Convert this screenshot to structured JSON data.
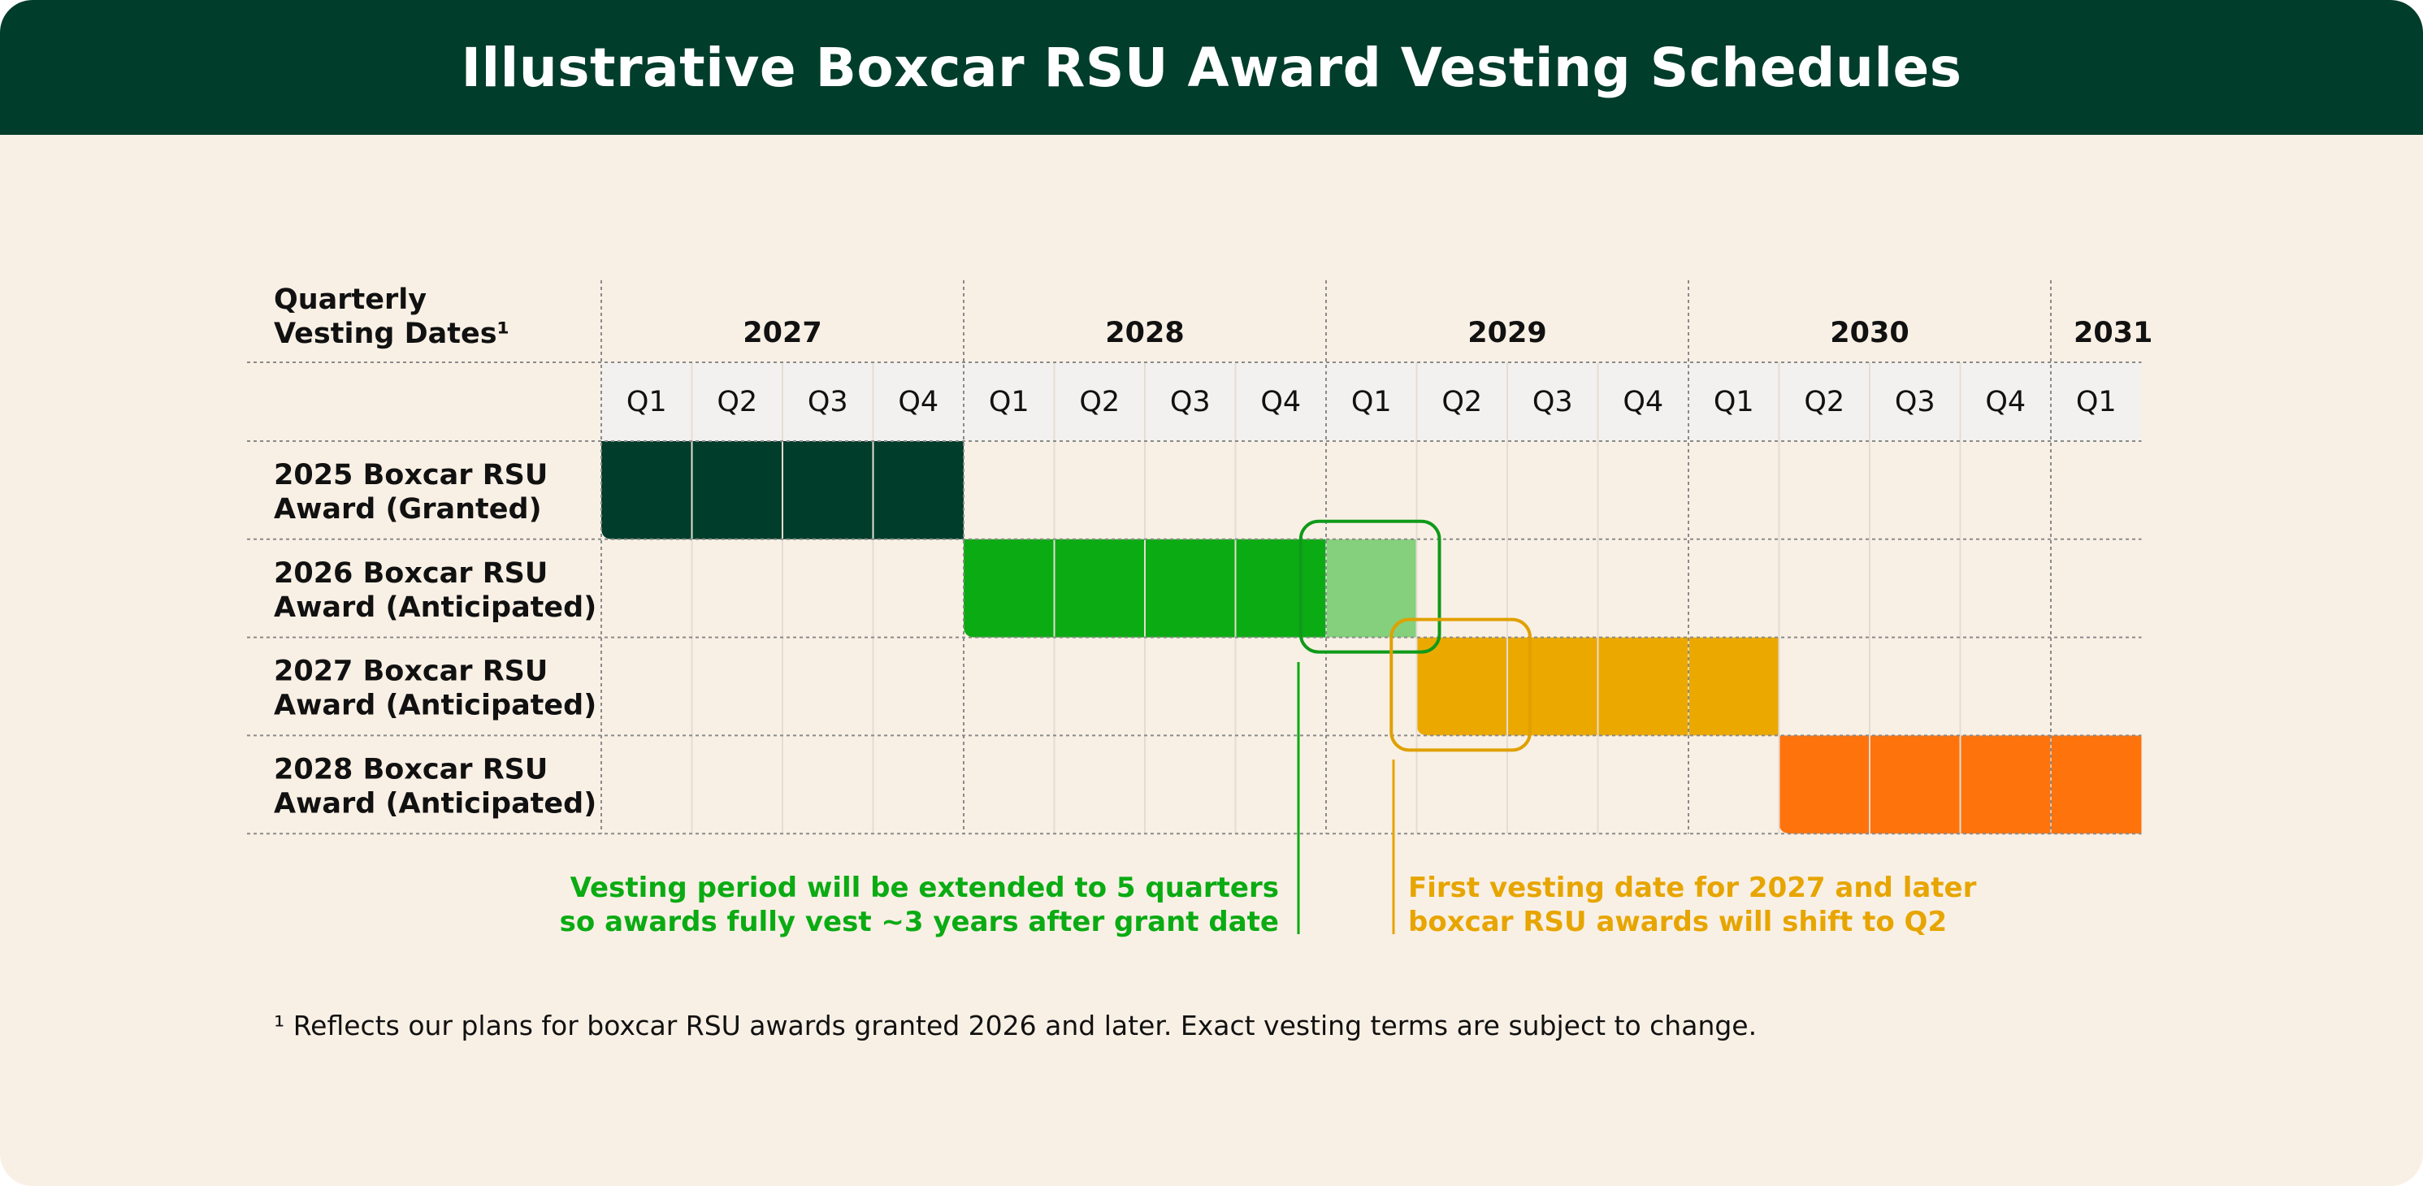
{
  "title": "Illustrative Boxcar RSU Award Vesting Schedules",
  "chart_data": {
    "type": "gantt",
    "header_label": "Quarterly\nVesting Dates¹",
    "years": [
      {
        "label": "2027",
        "quarters": [
          "Q1",
          "Q2",
          "Q3",
          "Q4"
        ]
      },
      {
        "label": "2028",
        "quarters": [
          "Q1",
          "Q2",
          "Q3",
          "Q4"
        ]
      },
      {
        "label": "2029",
        "quarters": [
          "Q1",
          "Q2",
          "Q3",
          "Q4"
        ]
      },
      {
        "label": "2030",
        "quarters": [
          "Q1",
          "Q2",
          "Q3",
          "Q4"
        ]
      },
      {
        "label": "2031",
        "quarters": [
          "Q1"
        ]
      }
    ],
    "rows": [
      {
        "label": "2025 Boxcar RSU\nAward (Granted)",
        "start": "2027 Q1",
        "end": "2027 Q4",
        "color": "#003d2b",
        "extension": null
      },
      {
        "label": "2026 Boxcar RSU\nAward (Anticipated)",
        "start": "2028 Q1",
        "end": "2028 Q4",
        "color": "#0bab13",
        "extension": {
          "quarter": "2029 Q1",
          "color": "#84d07c"
        }
      },
      {
        "label": "2027 Boxcar RSU\nAward (Anticipated)",
        "start": "2029 Q2",
        "end": "2030 Q1",
        "color": "#eba900",
        "extension": null
      },
      {
        "label": "2028 Boxcar RSU\nAward (Anticipated)",
        "start": "2030 Q2",
        "end": "2031 Q1",
        "color": "#ff730d",
        "extension": null
      }
    ],
    "highlights": [
      {
        "row": "2026 Boxcar RSU\nAward (Anticipated)",
        "quarters": [
          "2028 Q4",
          "2029 Q1"
        ],
        "color": "#0f9a1a"
      },
      {
        "row": "2027 Boxcar RSU\nAward (Anticipated)",
        "quarters": [
          "2029 Q1",
          "2029 Q2"
        ],
        "color": "#e0a000"
      }
    ]
  },
  "annotations": {
    "green": {
      "text": "Vesting period will be extended to 5 quarters\nso awards fully vest ~3 years after grant date",
      "color": "#0bab13"
    },
    "gold": {
      "text": "First vesting date for 2027 and later\nboxcar RSU awards will shift to Q2",
      "color": "#e7a500"
    }
  },
  "footnote": "¹ Reflects our plans for boxcar RSU awards granted 2026 and later. Exact vesting terms are subject to change.",
  "colors": {
    "header_bg": "#003d2b",
    "background": "#f9f0e5",
    "quarter_bg": "#f3f1ef"
  }
}
